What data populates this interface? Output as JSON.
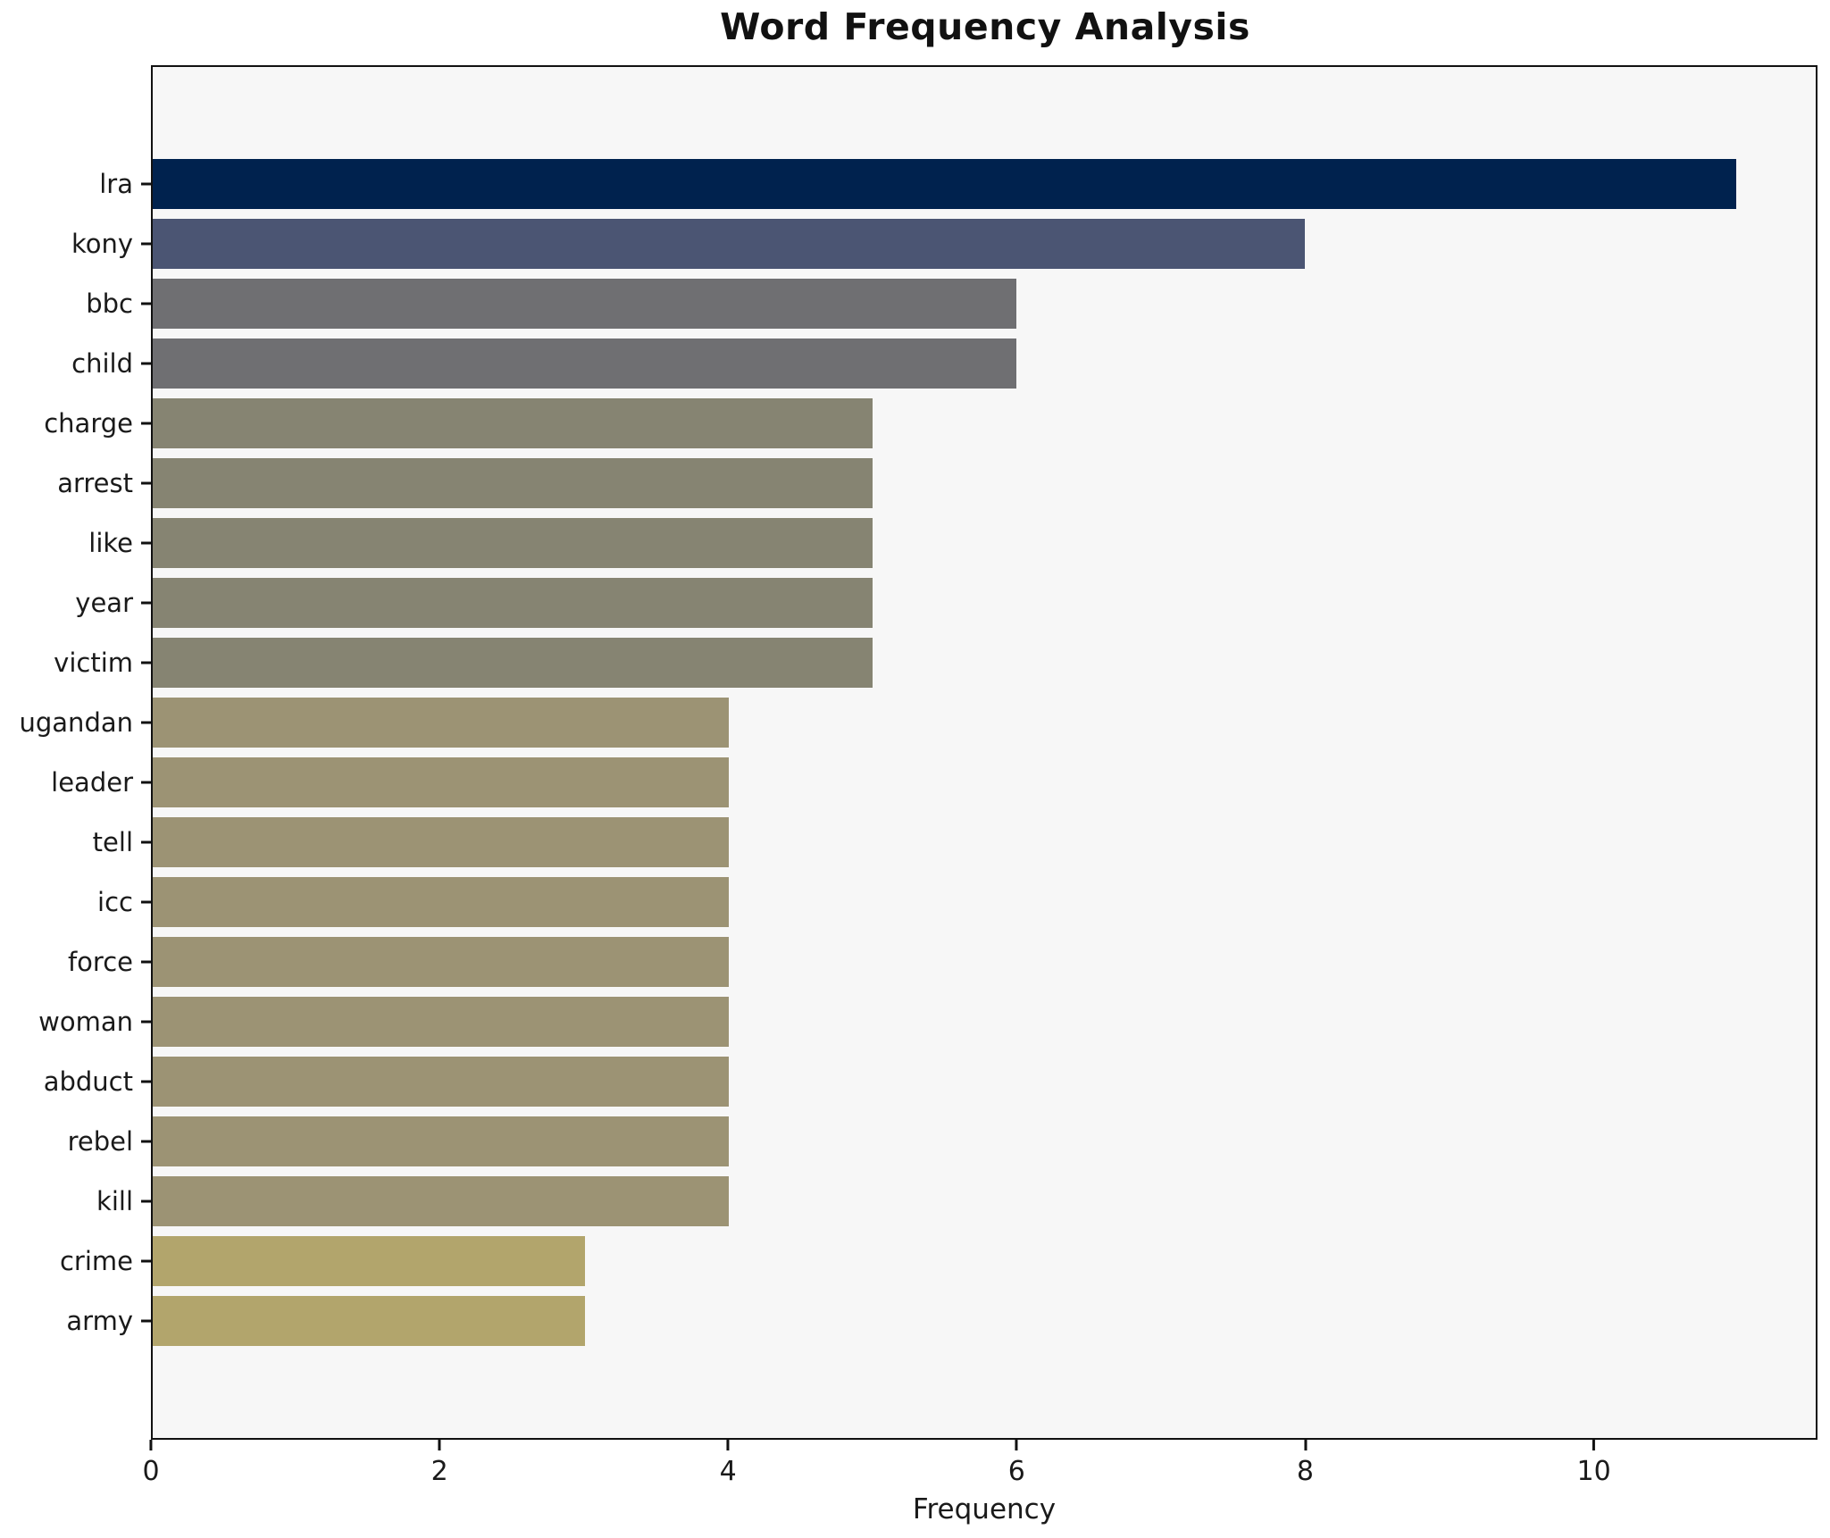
{
  "chart_data": {
    "type": "bar",
    "orientation": "horizontal",
    "title": "Word Frequency Analysis",
    "xlabel": "Frequency",
    "ylabel": "",
    "categories": [
      "lra",
      "kony",
      "bbc",
      "child",
      "charge",
      "arrest",
      "like",
      "year",
      "victim",
      "ugandan",
      "leader",
      "tell",
      "icc",
      "force",
      "woman",
      "abduct",
      "rebel",
      "kill",
      "crime",
      "army"
    ],
    "values": [
      11,
      8,
      6,
      6,
      5,
      5,
      5,
      5,
      5,
      4,
      4,
      4,
      4,
      4,
      4,
      4,
      4,
      4,
      3,
      3
    ],
    "colors": [
      "#00224e",
      "#4b5573",
      "#6f6f72",
      "#6f6f72",
      "#868472",
      "#868472",
      "#868472",
      "#868472",
      "#868472",
      "#9c9374",
      "#9c9374",
      "#9c9374",
      "#9c9374",
      "#9c9374",
      "#9c9374",
      "#9c9374",
      "#9c9374",
      "#9c9374",
      "#b2a56c",
      "#b2a56c"
    ],
    "xlim": [
      0,
      11.55
    ],
    "xticks": [
      0,
      2,
      4,
      6,
      8,
      10
    ],
    "xtick_labels": [
      "0",
      "2",
      "4",
      "6",
      "8",
      "10"
    ],
    "grid": false,
    "legend": null,
    "bar_color_ramp": "cividis-reversed"
  },
  "colors": {
    "figure_bg": "#ffffff",
    "plot_bg": "#f7f7f7",
    "spine": "#111111",
    "text": "#1a1a1a"
  }
}
